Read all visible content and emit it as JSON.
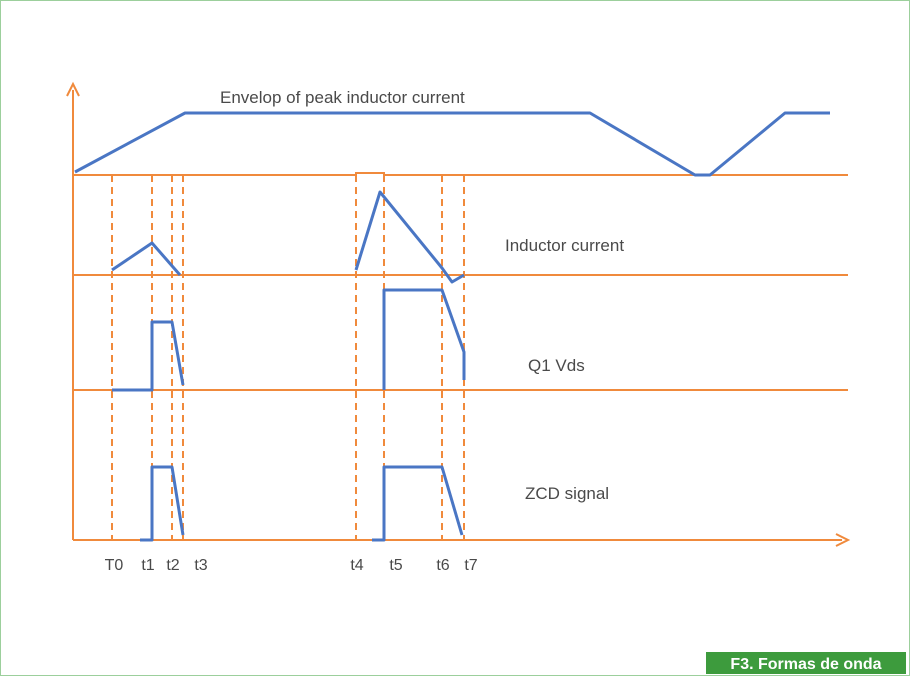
{
  "signals": [
    {
      "label": "Envelop of peak inductor current"
    },
    {
      "label": "Inductor current"
    },
    {
      "label": "Q1 Vds"
    },
    {
      "label": "ZCD signal"
    }
  ],
  "time_markers": [
    "T0",
    "t1",
    "t2",
    "t3",
    "t4",
    "t5",
    "t6",
    "t7"
  ],
  "caption": "F3. Formas de onda"
}
